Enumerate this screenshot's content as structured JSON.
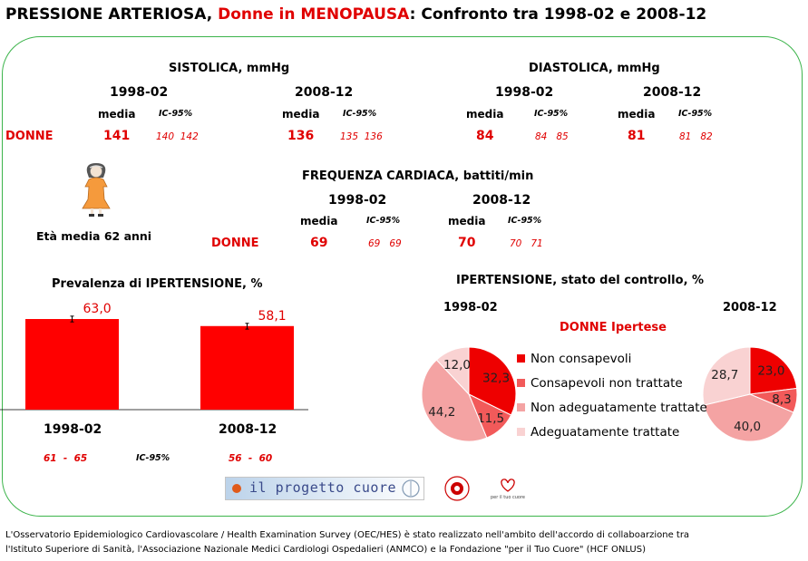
{
  "title": {
    "part1": "PRESSIONE ARTERIOSA,",
    "part2": "Donne in MENOPAUSA",
    "part3": ": Confronto tra 1998-02 e 2008-12"
  },
  "sistolica": {
    "header": "SISTOLICA, mmHg",
    "periods": [
      {
        "year": "1998-02",
        "media_label": "media",
        "ic_label": "IC-95%",
        "media": "141",
        "ic": "140  142"
      },
      {
        "year": "2008-12",
        "media_label": "media",
        "ic_label": "IC-95%",
        "media": "136",
        "ic": "135  136"
      }
    ]
  },
  "diastolica": {
    "header": "DIASTOLICA, mmHg",
    "periods": [
      {
        "year": "1998-02",
        "media_label": "media",
        "ic_label": "IC-95%",
        "media": "84",
        "ic": "84   85"
      },
      {
        "year": "2008-12",
        "media_label": "media",
        "ic_label": "IC-95%",
        "media": "81",
        "ic": "81   82"
      }
    ]
  },
  "frequenza": {
    "header": "FREQUENZA CARDIACA, battiti/min",
    "periods": [
      {
        "year": "1998-02",
        "media_label": "media",
        "ic_label": "IC-95%",
        "media": "69",
        "ic": "69   69"
      },
      {
        "year": "2008-12",
        "media_label": "media",
        "ic_label": "IC-95%",
        "media": "70",
        "ic": "70   71"
      }
    ]
  },
  "donne_label": "DONNE",
  "eta_media": "Età media 62 anni",
  "colors": {
    "red": "#ff0000",
    "title_red": "#e00000",
    "border": "#3cb44b"
  },
  "chart_data": [
    {
      "type": "bar",
      "title": "Prevalenza di IPERTENSIONE, %",
      "categories": [
        "1998-02",
        "2008-12"
      ],
      "values": [
        63.0,
        58.1
      ],
      "value_labels": [
        "63,0",
        "58,1"
      ],
      "ci": [
        [
          61,
          65
        ],
        [
          56,
          60
        ]
      ],
      "ci_labels": [
        "61  -  65",
        "56  -  60"
      ],
      "ci_title": "IC-95%",
      "ylim": [
        0,
        100
      ],
      "color": "#ff0000"
    },
    {
      "type": "pie",
      "title": "IPERTENSIONE, stato del controllo, %",
      "subtitle": "DONNE Ipertese",
      "legend": [
        {
          "label": "Non consapevoli",
          "color": "#ee0000"
        },
        {
          "label": "Consapevoli non trattate",
          "color": "#f25a5a"
        },
        {
          "label": "Non adeguatamente trattate",
          "color": "#f4a3a3"
        },
        {
          "label": "Adeguatamente trattate",
          "color": "#f9d2d2"
        }
      ],
      "pies": [
        {
          "year": "1998-02",
          "values": [
            32.3,
            11.5,
            44.2,
            12.0
          ],
          "labels": [
            "32,3",
            "11,5",
            "44,2",
            "12,0"
          ]
        },
        {
          "year": "2008-12",
          "values": [
            23.0,
            8.3,
            40.0,
            28.7
          ],
          "labels": [
            "23,0",
            "8,3",
            "40,0",
            "28,7"
          ]
        }
      ]
    }
  ],
  "logos": {
    "progetto": "il progetto cuore",
    "hcf": "per il tuo cuore"
  },
  "footer": {
    "line1": "L'Osservatorio Epidemiologico Cardiovascolare / Health Examination Survey (OEC/HES) è stato realizzato nell'ambito dell'accordo di collaboarzione tra",
    "line2": "l'Istituto Superiore di Sanità, l'Associazione Nazionale Medici Cardiologi Ospedalieri (ANMCO) e la Fondazione \"per il Tuo Cuore\" (HCF ONLUS)"
  }
}
